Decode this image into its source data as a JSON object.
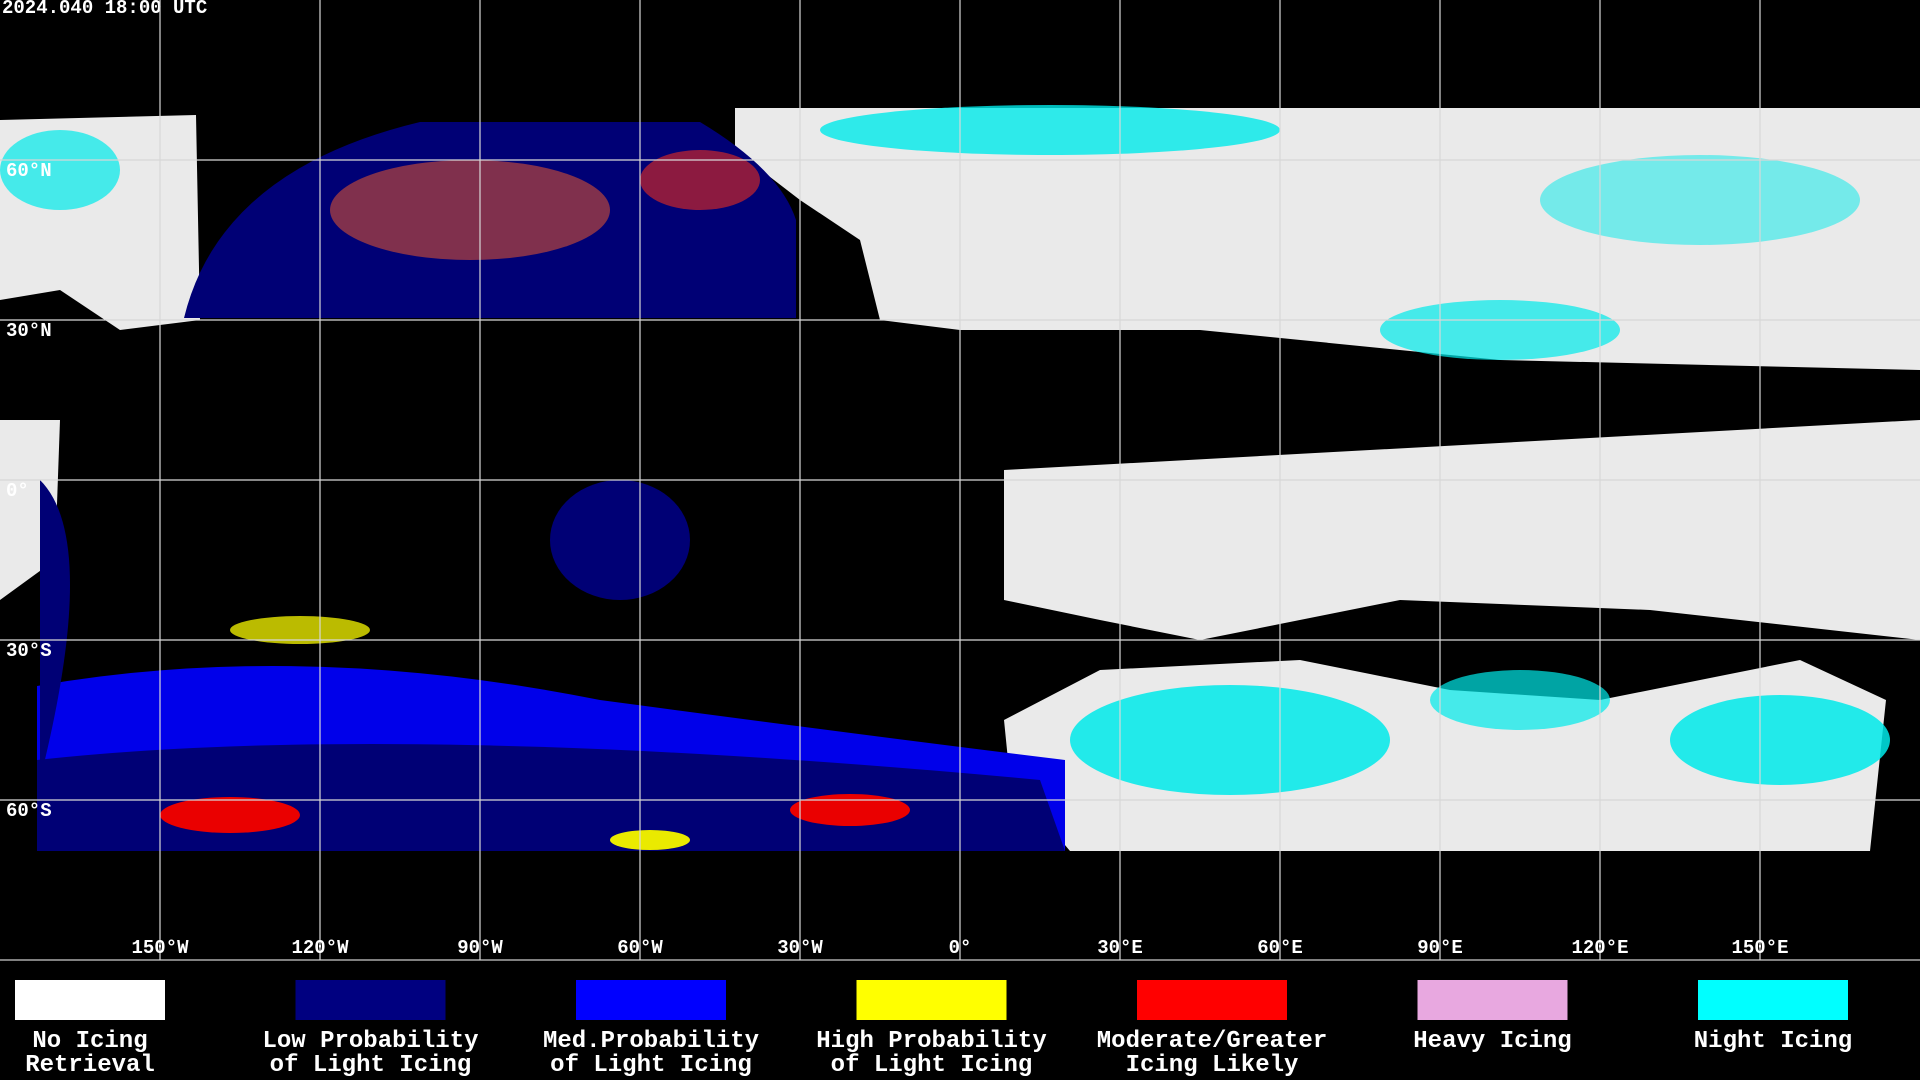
{
  "header": {
    "title": "2024.040 18:00 UTC"
  },
  "map": {
    "lon_ticks": [
      {
        "value": -150,
        "label": "150°W"
      },
      {
        "value": -120,
        "label": "120°W"
      },
      {
        "value": -90,
        "label": "90°W"
      },
      {
        "value": -60,
        "label": "60°W"
      },
      {
        "value": -30,
        "label": "30°W"
      },
      {
        "value": 0,
        "label": "0°"
      },
      {
        "value": 30,
        "label": "30°E"
      },
      {
        "value": 60,
        "label": "60°E"
      },
      {
        "value": 90,
        "label": "90°E"
      },
      {
        "value": 120,
        "label": "120°E"
      },
      {
        "value": 150,
        "label": "150°E"
      }
    ],
    "lat_ticks": [
      {
        "value": 60,
        "label": "60°N"
      },
      {
        "value": 30,
        "label": "30°N"
      },
      {
        "value": 0,
        "label": "0°"
      },
      {
        "value": -30,
        "label": "30°S"
      },
      {
        "value": -60,
        "label": "60°S"
      }
    ]
  },
  "legend": [
    {
      "color": "#ffffff",
      "lines": [
        "No Icing",
        "Retrieval"
      ]
    },
    {
      "color": "#000080",
      "lines": [
        "Low Probability",
        "of Light Icing"
      ]
    },
    {
      "color": "#0000ff",
      "lines": [
        "Med.Probability",
        "of Light Icing"
      ]
    },
    {
      "color": "#ffff00",
      "lines": [
        "High Probability",
        "of Light Icing"
      ]
    },
    {
      "color": "#ff0000",
      "lines": [
        "Moderate/Greater",
        "Icing Likely"
      ]
    },
    {
      "color": "#e8a8e0",
      "lines": [
        "Heavy Icing"
      ]
    },
    {
      "color": "#00ffff",
      "lines": [
        "Night Icing"
      ]
    }
  ]
}
